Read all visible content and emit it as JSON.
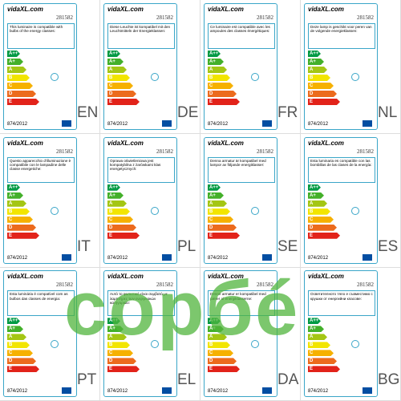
{
  "brand": "vidaXL.com",
  "product_number": "281582",
  "regulation": "874/2012",
  "energy_classes": [
    "A++",
    "A+",
    "A",
    "B",
    "C",
    "D",
    "E"
  ],
  "class_colors": [
    "#009a44",
    "#43b02a",
    "#a4c614",
    "#f2e500",
    "#f6b100",
    "#ec6b1d",
    "#e2231a"
  ],
  "watermark": "сорбé",
  "cells": [
    {
      "lang": "EN",
      "text": "This luminaire is compatible with bulbs of the energy classes:"
    },
    {
      "lang": "DE",
      "text": "Diese Leuchte ist kompatibel mit den Leuchtmitteln der Energieklassen:"
    },
    {
      "lang": "FR",
      "text": "Ce luminaire est compatible avec les ampoules des classes énergétiques:"
    },
    {
      "lang": "NL",
      "text": "Deze lamp is geschikt voor peren van de volgende energieklassen:"
    },
    {
      "lang": "IT",
      "text": "Questo apparecchio d'illuminazione è compatibile con le lampadine delle classe energetiche:"
    },
    {
      "lang": "PL",
      "text": "Oprawa oświetleniowa jest kompatybilna z żarówkami klas energetycznych:"
    },
    {
      "lang": "SE",
      "text": "Denna armatur är kompatibel med lampor av följande energiklasser:"
    },
    {
      "lang": "ES",
      "text": "Esta luminaria es compatible con las bombillas de las clases de la energía:"
    },
    {
      "lang": "PT",
      "text": "Esta luminária é compatível com as bulbos das classes de energia:"
    },
    {
      "lang": "EL",
      "text": "Αυτό το φωτιστικό είναι συμβατό με λαμπτήρες των ενεργειακών κατηγοριών:"
    },
    {
      "lang": "DA",
      "text": "Denne armatur er kompatibel med pærer af energiklasserne:"
    },
    {
      "lang": "BG",
      "text": "Осветителното тяло е съвместимо с крушки от енергийни класове:"
    }
  ]
}
